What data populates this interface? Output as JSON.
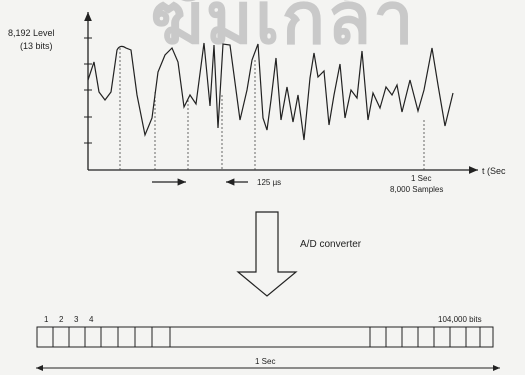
{
  "watermark": "ฆัมเกล้า",
  "waveform": {
    "level_label": "8,192 Level",
    "bits_label": "(13 bits)",
    "time_axis_label": "t (Sec",
    "interval_label": "125 µs",
    "one_sec_label": "1 Sec",
    "samples_label": "8,000 Samples"
  },
  "converter": {
    "label": "A/D converter"
  },
  "bitstream": {
    "index_labels": [
      "1",
      "2",
      "3",
      "4"
    ],
    "bits_label": "104,000 bits",
    "duration_label": "1 Sec"
  },
  "colors": {
    "ink": "#222222",
    "background": "#f4f4f2"
  }
}
